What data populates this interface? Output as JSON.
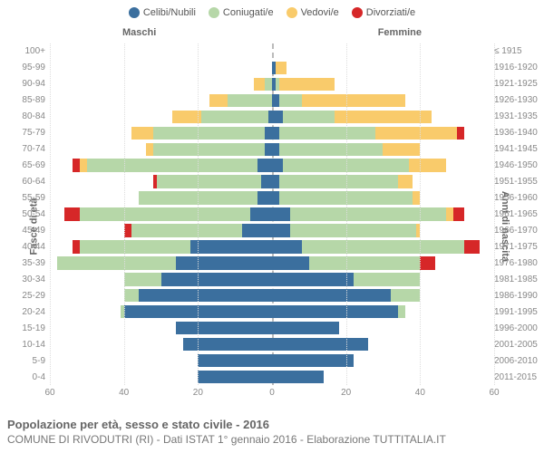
{
  "legend": [
    {
      "label": "Celibi/Nubili",
      "color": "#3b6f9e"
    },
    {
      "label": "Coniugati/e",
      "color": "#b6d7a8"
    },
    {
      "label": "Vedovi/e",
      "color": "#f9cb6b"
    },
    {
      "label": "Divorziati/e",
      "color": "#d62728"
    }
  ],
  "gender": {
    "male": "Maschi",
    "female": "Femmine"
  },
  "axis": {
    "left": "Fasce di età",
    "right": "Anni di nascita"
  },
  "title": "Popolazione per età, sesso e stato civile - 2016",
  "subtitle": "COMUNE DI RIVODUTRI (RI) - Dati ISTAT 1° gennaio 2016 - Elaborazione TUTTITALIA.IT",
  "x_max": 60,
  "x_ticks": [
    60,
    40,
    20,
    0,
    20,
    40,
    60
  ],
  "colors": {
    "single": "#3b6f9e",
    "married": "#b6d7a8",
    "widow": "#f9cb6b",
    "div": "#d62728",
    "grid": "#dddddd",
    "center": "#bbbbbb",
    "text": "#666666"
  },
  "rows": [
    {
      "age": "100+",
      "birth": "≤ 1915",
      "m": {
        "single": 0,
        "married": 0,
        "widow": 0,
        "div": 0
      },
      "f": {
        "single": 0,
        "married": 0,
        "widow": 0,
        "div": 0
      }
    },
    {
      "age": "95-99",
      "birth": "1916-1920",
      "m": {
        "single": 0,
        "married": 0,
        "widow": 0,
        "div": 0
      },
      "f": {
        "single": 1,
        "married": 0,
        "widow": 3,
        "div": 0
      }
    },
    {
      "age": "90-94",
      "birth": "1921-1925",
      "m": {
        "single": 0,
        "married": 2,
        "widow": 3,
        "div": 0
      },
      "f": {
        "single": 1,
        "married": 1,
        "widow": 15,
        "div": 0
      }
    },
    {
      "age": "85-89",
      "birth": "1926-1930",
      "m": {
        "single": 0,
        "married": 12,
        "widow": 5,
        "div": 0
      },
      "f": {
        "single": 2,
        "married": 6,
        "widow": 28,
        "div": 0
      }
    },
    {
      "age": "80-84",
      "birth": "1931-1935",
      "m": {
        "single": 1,
        "married": 18,
        "widow": 8,
        "div": 0
      },
      "f": {
        "single": 3,
        "married": 14,
        "widow": 26,
        "div": 0
      }
    },
    {
      "age": "75-79",
      "birth": "1936-1940",
      "m": {
        "single": 2,
        "married": 30,
        "widow": 6,
        "div": 0
      },
      "f": {
        "single": 2,
        "married": 26,
        "widow": 22,
        "div": 2
      }
    },
    {
      "age": "70-74",
      "birth": "1941-1945",
      "m": {
        "single": 2,
        "married": 30,
        "widow": 2,
        "div": 0
      },
      "f": {
        "single": 2,
        "married": 28,
        "widow": 10,
        "div": 0
      }
    },
    {
      "age": "65-69",
      "birth": "1946-1950",
      "m": {
        "single": 4,
        "married": 46,
        "widow": 2,
        "div": 2
      },
      "f": {
        "single": 3,
        "married": 34,
        "widow": 10,
        "div": 0
      }
    },
    {
      "age": "60-64",
      "birth": "1951-1955",
      "m": {
        "single": 3,
        "married": 28,
        "widow": 0,
        "div": 1
      },
      "f": {
        "single": 2,
        "married": 32,
        "widow": 4,
        "div": 0
      }
    },
    {
      "age": "55-59",
      "birth": "1956-1960",
      "m": {
        "single": 4,
        "married": 32,
        "widow": 0,
        "div": 0
      },
      "f": {
        "single": 2,
        "married": 36,
        "widow": 2,
        "div": 0
      }
    },
    {
      "age": "50-54",
      "birth": "1961-1965",
      "m": {
        "single": 6,
        "married": 46,
        "widow": 0,
        "div": 4
      },
      "f": {
        "single": 5,
        "married": 42,
        "widow": 2,
        "div": 3
      }
    },
    {
      "age": "45-49",
      "birth": "1966-1970",
      "m": {
        "single": 8,
        "married": 30,
        "widow": 0,
        "div": 2
      },
      "f": {
        "single": 5,
        "married": 34,
        "widow": 1,
        "div": 0
      }
    },
    {
      "age": "40-44",
      "birth": "1971-1975",
      "m": {
        "single": 22,
        "married": 30,
        "widow": 0,
        "div": 2
      },
      "f": {
        "single": 8,
        "married": 44,
        "widow": 0,
        "div": 4
      }
    },
    {
      "age": "35-39",
      "birth": "1976-1980",
      "m": {
        "single": 26,
        "married": 32,
        "widow": 0,
        "div": 0
      },
      "f": {
        "single": 10,
        "married": 30,
        "widow": 0,
        "div": 4
      }
    },
    {
      "age": "30-34",
      "birth": "1981-1985",
      "m": {
        "single": 30,
        "married": 10,
        "widow": 0,
        "div": 0
      },
      "f": {
        "single": 22,
        "married": 18,
        "widow": 0,
        "div": 0
      }
    },
    {
      "age": "25-29",
      "birth": "1986-1990",
      "m": {
        "single": 36,
        "married": 4,
        "widow": 0,
        "div": 0
      },
      "f": {
        "single": 32,
        "married": 8,
        "widow": 0,
        "div": 0
      }
    },
    {
      "age": "20-24",
      "birth": "1991-1995",
      "m": {
        "single": 40,
        "married": 1,
        "widow": 0,
        "div": 0
      },
      "f": {
        "single": 34,
        "married": 2,
        "widow": 0,
        "div": 0
      }
    },
    {
      "age": "15-19",
      "birth": "1996-2000",
      "m": {
        "single": 26,
        "married": 0,
        "widow": 0,
        "div": 0
      },
      "f": {
        "single": 18,
        "married": 0,
        "widow": 0,
        "div": 0
      }
    },
    {
      "age": "10-14",
      "birth": "2001-2005",
      "m": {
        "single": 24,
        "married": 0,
        "widow": 0,
        "div": 0
      },
      "f": {
        "single": 26,
        "married": 0,
        "widow": 0,
        "div": 0
      }
    },
    {
      "age": "5-9",
      "birth": "2006-2010",
      "m": {
        "single": 20,
        "married": 0,
        "widow": 0,
        "div": 0
      },
      "f": {
        "single": 22,
        "married": 0,
        "widow": 0,
        "div": 0
      }
    },
    {
      "age": "0-4",
      "birth": "2011-2015",
      "m": {
        "single": 20,
        "married": 0,
        "widow": 0,
        "div": 0
      },
      "f": {
        "single": 14,
        "married": 0,
        "widow": 0,
        "div": 0
      }
    }
  ]
}
